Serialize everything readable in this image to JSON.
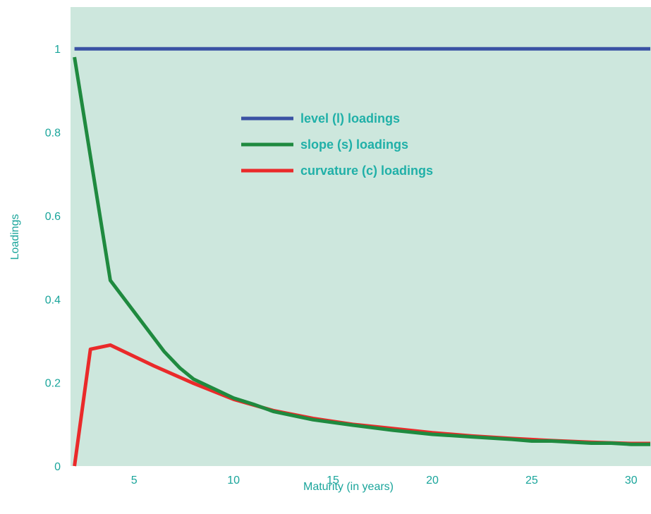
{
  "chart_data": {
    "type": "line",
    "title": "",
    "xlabel": "Maturity (in years)",
    "ylabel": "Loadings",
    "xlim": [
      1.8,
      31
    ],
    "ylim": [
      0,
      1.1
    ],
    "x_ticks": [
      5,
      10,
      15,
      20,
      25,
      30
    ],
    "y_ticks": [
      0,
      0.2,
      0.4,
      0.6,
      0.8,
      1
    ],
    "x_tick_labels": [
      "5",
      "10",
      "15",
      "20",
      "25",
      "30"
    ],
    "y_tick_labels": [
      "0",
      "0.2",
      "0.4",
      "0.6",
      "0.8",
      "1"
    ],
    "grid": false,
    "legend_position": "upper-center",
    "colors": {
      "background": "#cde7dd",
      "text": "#1aa59b",
      "legend_text": "#20b0a8"
    },
    "series": [
      {
        "name": "level (l) loadings",
        "color": "#3a52a3",
        "points": [
          [
            2.0,
            1.0
          ],
          [
            31.0,
            1.0
          ]
        ]
      },
      {
        "name": "slope (s) loadings",
        "color": "#1f8a3f",
        "points": [
          [
            2.0,
            0.98
          ],
          [
            3.8,
            0.445
          ],
          [
            6.5,
            0.275
          ],
          [
            7.3,
            0.235
          ],
          [
            8.0,
            0.208
          ],
          [
            10.0,
            0.163
          ],
          [
            11.0,
            0.148
          ],
          [
            12.0,
            0.131
          ],
          [
            14.0,
            0.111
          ],
          [
            16.0,
            0.098
          ],
          [
            18.0,
            0.086
          ],
          [
            20.0,
            0.076
          ],
          [
            22.0,
            0.07
          ],
          [
            24.0,
            0.064
          ],
          [
            25.0,
            0.06
          ],
          [
            26.0,
            0.06
          ],
          [
            28.0,
            0.055
          ],
          [
            29.0,
            0.055
          ],
          [
            30.0,
            0.052
          ],
          [
            31.0,
            0.052
          ]
        ]
      },
      {
        "name": "curvature (c) loadings",
        "color": "#ea2a2a",
        "points": [
          [
            2.0,
            0.0
          ],
          [
            2.8,
            0.28
          ],
          [
            3.8,
            0.29
          ],
          [
            6.0,
            0.24
          ],
          [
            8.0,
            0.198
          ],
          [
            10.0,
            0.16
          ],
          [
            12.0,
            0.133
          ],
          [
            14.0,
            0.114
          ],
          [
            16.0,
            0.1
          ],
          [
            18.0,
            0.09
          ],
          [
            20.0,
            0.08
          ],
          [
            22.0,
            0.072
          ],
          [
            24.0,
            0.066
          ],
          [
            26.0,
            0.061
          ],
          [
            28.0,
            0.057
          ],
          [
            30.0,
            0.054
          ],
          [
            31.0,
            0.054
          ]
        ]
      }
    ]
  }
}
